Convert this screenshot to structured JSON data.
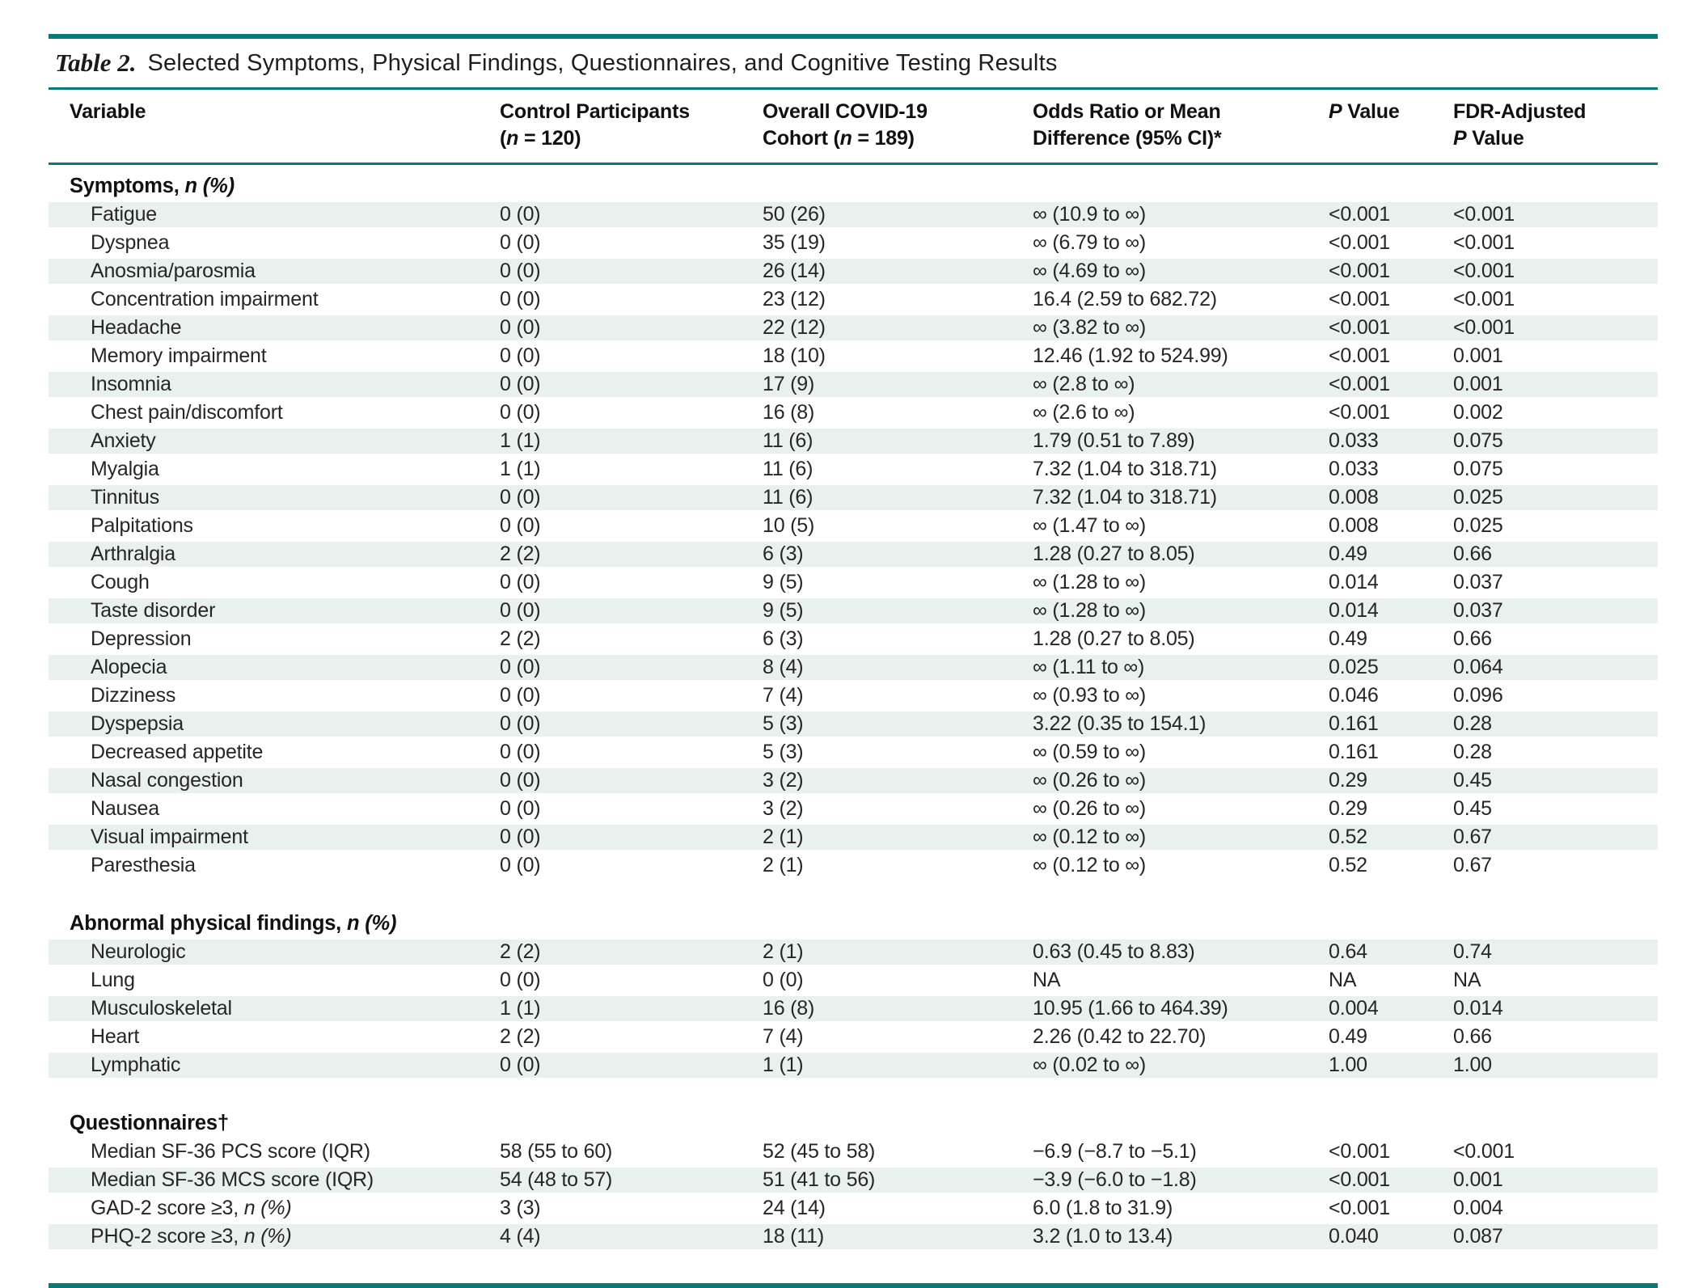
{
  "table": {
    "title_label": "Table 2.",
    "title_text": "Selected Symptoms, Physical Findings, Questionnaires, and Cognitive Testing Results",
    "columns": [
      {
        "lines": [
          "Variable"
        ]
      },
      {
        "lines": [
          "Control Participants",
          "(n = 120)"
        ]
      },
      {
        "lines": [
          "Overall COVID-19",
          "Cohort (n = 189)"
        ]
      },
      {
        "lines": [
          "Odds Ratio or Mean",
          "Difference (95% CI)*"
        ]
      },
      {
        "lines": [
          "P Value"
        ]
      },
      {
        "lines": [
          "FDR-Adjusted",
          "P Value"
        ]
      }
    ],
    "sections": [
      {
        "header": "Symptoms, n (%)",
        "rows": [
          [
            "Fatigue",
            "0 (0)",
            "50 (26)",
            "∞ (10.9 to ∞)",
            "<0.001",
            "<0.001"
          ],
          [
            "Dyspnea",
            "0 (0)",
            "35 (19)",
            "∞ (6.79 to ∞)",
            "<0.001",
            "<0.001"
          ],
          [
            "Anosmia/parosmia",
            "0 (0)",
            "26 (14)",
            "∞ (4.69 to ∞)",
            "<0.001",
            "<0.001"
          ],
          [
            "Concentration impairment",
            "0 (0)",
            "23 (12)",
            "16.4 (2.59 to 682.72)",
            "<0.001",
            "<0.001"
          ],
          [
            "Headache",
            "0 (0)",
            "22 (12)",
            "∞ (3.82 to ∞)",
            "<0.001",
            "<0.001"
          ],
          [
            "Memory impairment",
            "0 (0)",
            "18 (10)",
            "12.46 (1.92 to 524.99)",
            "<0.001",
            "0.001"
          ],
          [
            "Insomnia",
            "0 (0)",
            "17 (9)",
            "∞ (2.8 to ∞)",
            "<0.001",
            "0.001"
          ],
          [
            "Chest pain/discomfort",
            "0 (0)",
            "16 (8)",
            "∞ (2.6 to ∞)",
            "<0.001",
            "0.002"
          ],
          [
            "Anxiety",
            "1 (1)",
            "11 (6)",
            "1.79 (0.51 to 7.89)",
            "0.033",
            "0.075"
          ],
          [
            "Myalgia",
            "1 (1)",
            "11 (6)",
            "7.32 (1.04 to 318.71)",
            "0.033",
            "0.075"
          ],
          [
            "Tinnitus",
            "0 (0)",
            "11 (6)",
            "7.32 (1.04 to 318.71)",
            "0.008",
            "0.025"
          ],
          [
            "Palpitations",
            "0 (0)",
            "10 (5)",
            "∞ (1.47 to ∞)",
            "0.008",
            "0.025"
          ],
          [
            "Arthralgia",
            "2 (2)",
            "6 (3)",
            "1.28 (0.27 to 8.05)",
            "0.49",
            "0.66"
          ],
          [
            "Cough",
            "0 (0)",
            "9 (5)",
            "∞ (1.28 to ∞)",
            "0.014",
            "0.037"
          ],
          [
            "Taste disorder",
            "0 (0)",
            "9 (5)",
            "∞ (1.28 to ∞)",
            "0.014",
            "0.037"
          ],
          [
            "Depression",
            "2 (2)",
            "6 (3)",
            "1.28 (0.27 to 8.05)",
            "0.49",
            "0.66"
          ],
          [
            "Alopecia",
            "0 (0)",
            "8 (4)",
            "∞ (1.11 to ∞)",
            "0.025",
            "0.064"
          ],
          [
            "Dizziness",
            "0 (0)",
            "7 (4)",
            "∞ (0.93 to ∞)",
            "0.046",
            "0.096"
          ],
          [
            "Dyspepsia",
            "0 (0)",
            "5 (3)",
            "3.22 (0.35 to 154.1)",
            "0.161",
            "0.28"
          ],
          [
            "Decreased appetite",
            "0 (0)",
            "5 (3)",
            "∞ (0.59 to ∞)",
            "0.161",
            "0.28"
          ],
          [
            "Nasal congestion",
            "0 (0)",
            "3 (2)",
            "∞ (0.26 to ∞)",
            "0.29",
            "0.45"
          ],
          [
            "Nausea",
            "0 (0)",
            "3 (2)",
            "∞ (0.26 to ∞)",
            "0.29",
            "0.45"
          ],
          [
            "Visual impairment",
            "0 (0)",
            "2 (1)",
            "∞ (0.12 to ∞)",
            "0.52",
            "0.67"
          ],
          [
            "Paresthesia",
            "0 (0)",
            "2 (1)",
            "∞ (0.12 to ∞)",
            "0.52",
            "0.67"
          ]
        ]
      },
      {
        "header": "Abnormal physical findings, n (%)",
        "rows": [
          [
            "Neurologic",
            "2 (2)",
            "2 (1)",
            "0.63 (0.45 to 8.83)",
            "0.64",
            "0.74"
          ],
          [
            "Lung",
            "0 (0)",
            "0 (0)",
            "NA",
            "NA",
            "NA"
          ],
          [
            "Musculoskeletal",
            "1 (1)",
            "16 (8)",
            "10.95 (1.66 to 464.39)",
            "0.004",
            "0.014"
          ],
          [
            "Heart",
            "2 (2)",
            "7 (4)",
            "2.26 (0.42 to 22.70)",
            "0.49",
            "0.66"
          ],
          [
            "Lymphatic",
            "0 (0)",
            "1 (1)",
            "∞ (0.02 to ∞)",
            "1.00",
            "1.00"
          ]
        ]
      },
      {
        "header": "Questionnaires†",
        "rows": [
          [
            "Median SF-36 PCS score (IQR)",
            "58 (55 to 60)",
            "52 (45 to 58)",
            "−6.9 (−8.7 to −5.1)",
            "<0.001",
            "<0.001"
          ],
          [
            "Median SF-36 MCS score (IQR)",
            "54 (48 to 57)",
            "51 (41 to 56)",
            "−3.9 (−6.0 to −1.8)",
            "<0.001",
            "0.001"
          ],
          [
            "GAD-2 score ≥3, n (%)",
            "3 (3)",
            "24 (14)",
            "6.0 (1.8 to 31.9)",
            "<0.001",
            "0.004"
          ],
          [
            "PHQ-2 score ≥3, n (%)",
            "4 (4)",
            "18 (11)",
            "3.2 (1.0 to 13.4)",
            "0.040",
            "0.087"
          ]
        ]
      }
    ],
    "colors": {
      "rule_teal": "#077a79",
      "stripe_green": "#e8f1ed"
    }
  }
}
